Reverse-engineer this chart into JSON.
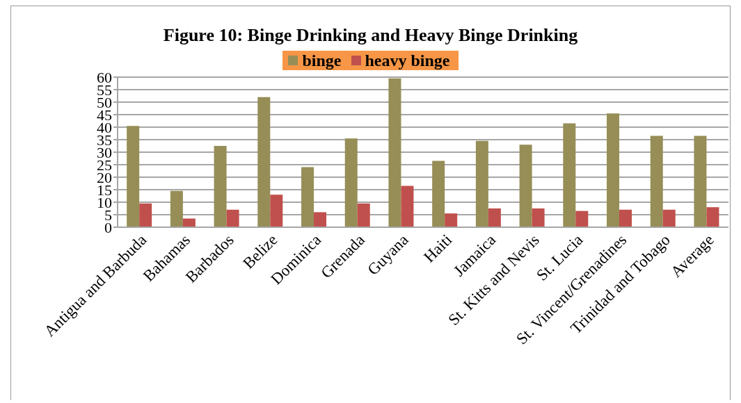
{
  "chart_data": {
    "type": "bar",
    "title": "Figure 10: Binge Drinking and Heavy Binge Drinking",
    "categories": [
      "Antigua and Barbuda",
      "Bahamas",
      "Barbados",
      "Belize",
      "Dominica",
      "Grenada",
      "Guyana",
      "Haiti",
      "Jamaica",
      "St. Kitts and Nevis",
      "St. Lucia",
      "St. Vincent/Grenadines",
      "Trinidad and Tobago",
      "Average"
    ],
    "series": [
      {
        "name": "binge",
        "color": "#968e56",
        "values": [
          40.5,
          14.5,
          32.5,
          52,
          24,
          35.5,
          59.5,
          26.5,
          34.5,
          33,
          41.5,
          45.5,
          36.5,
          36.5
        ]
      },
      {
        "name": "heavy binge",
        "color": "#c0504d",
        "values": [
          9.5,
          3.5,
          7,
          13,
          6,
          9.5,
          16.5,
          5.5,
          7.5,
          7.5,
          6.5,
          7,
          7,
          8
        ]
      }
    ],
    "ylim": [
      0,
      60
    ],
    "yticks": [
      0,
      5,
      10,
      15,
      20,
      25,
      30,
      35,
      40,
      45,
      50,
      55,
      60
    ],
    "grid": "y",
    "legend": "top"
  }
}
